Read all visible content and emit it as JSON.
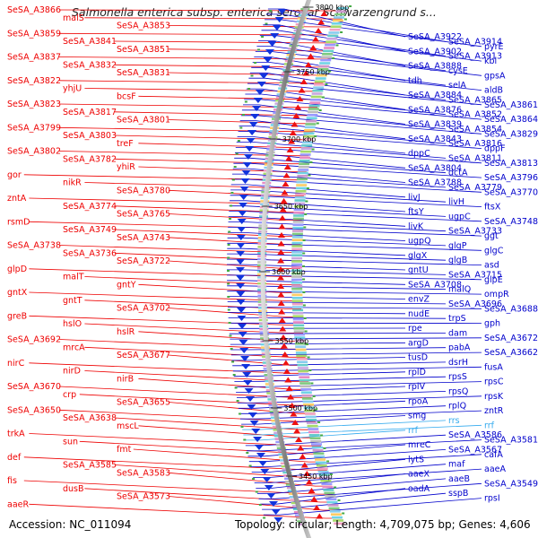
{
  "title": "Salmonella enterica subsp. enterica serovar Schwarzengrund s...",
  "footer": {
    "accession": "Accession: NC_011094",
    "topology": "Topology: circular; Length: 4,709,075 bp; Genes: 4,606"
  },
  "colors": {
    "forward_label": "#ee0000",
    "reverse_label": "#0000cc",
    "rna_label": "#33aaee",
    "backbone": "#888888",
    "tick": "#44aa44"
  },
  "kbp_ticks": [
    "3800 kbp",
    "3750 kbp",
    "3700 kbp",
    "3650 kbp",
    "3600 kbp",
    "3550 kbp",
    "3500 kbp",
    "3450 kbp"
  ],
  "left_labels": [
    "SeSA_A3866",
    "malS",
    "SeSA_A3853",
    "SeSA_A3859",
    "SeSA_A3841",
    "SeSA_A3851",
    "SeSA_A3837",
    "SeSA_A3832",
    "SeSA_A3831",
    "SeSA_A3822",
    "yhjU",
    "bcsF",
    "SeSA_A3823",
    "SeSA_A3817",
    "SeSA_A3801",
    "SeSA_A3799",
    "SeSA_A3803",
    "treF",
    "SeSA_A3802",
    "SeSA_A3782",
    "yhiR",
    "gor",
    "nikR",
    "SeSA_A3780",
    "zntA",
    "SeSA_A3774",
    "SeSA_A3765",
    "rsmD",
    "SeSA_A3749",
    "SeSA_A3743",
    "SeSA_A3738",
    "SeSA_A3736",
    "SeSA_A3722",
    "glpD",
    "malT",
    "gntY",
    "gntX",
    "gntT",
    "SeSA_A3702",
    "greB",
    "hslO",
    "hslR",
    "SeSA_A3692",
    "mrcA",
    "SeSA_A3677",
    "nirC",
    "nirD",
    "nirB",
    "SeSA_A3670",
    "crp",
    "SeSA_A3655",
    "SeSA_A3650",
    "SeSA_A3638",
    "mscL",
    "trkA",
    "sun",
    "fmt",
    "def",
    "SeSA_A3585",
    "SeSA_A3583",
    "fis",
    "dusB",
    "SeSA_A3573",
    "aaeR"
  ],
  "right_labels": [
    "SeSA_A3922",
    "SeSA_A3914",
    "pyrE",
    "SeSA_A3902",
    "SeSA_A3913",
    "kbl",
    "SeSA_A3888",
    "cysE",
    "gpsA",
    "tdh",
    "selA",
    "aldB",
    "SeSA_A3884",
    "SeSA_A3865",
    "SeSA_A3861",
    "SeSA_A3876",
    "SeSA_A3852",
    "SeSA_A3864",
    "SeSA_A3839",
    "SeSA_A3854",
    "SeSA_A3829",
    "SeSA_A3843",
    "SeSA_A3816",
    "dppF",
    "dppC",
    "SeSA_A3811",
    "SeSA_A3813",
    "SeSA_A3804",
    "dctA",
    "SeSA_A3796",
    "SeSA_A3788",
    "SeSA_A3779",
    "SeSA_A3770",
    "livJ",
    "livH",
    "ftsX",
    "ftsY",
    "ugpC",
    "SeSA_A3748",
    "livK",
    "SeSA_A3733",
    "ggt",
    "ugpQ",
    "glgP",
    "glgC",
    "glgX",
    "glgB",
    "asd",
    "gntU",
    "SeSA_A3715",
    "glpE",
    "SeSA_A3708",
    "malQ",
    "ompR",
    "envZ",
    "SeSA_A3696",
    "SeSA_A3688",
    "nudE",
    "trpS",
    "gph",
    "rpe",
    "dam",
    "SeSA_A3672",
    "argD",
    "pabA",
    "SeSA_A3662",
    "tusD",
    "dsrH",
    "fusA",
    "rplD",
    "rpsS",
    "rpsC",
    "rplV",
    "rpsQ",
    "rpsK",
    "rpoA",
    "rplQ",
    "zntR",
    "smg",
    "rrs",
    "rrf",
    "rrf",
    "SeSA_A3586",
    "SeSA_A3581",
    "mreC",
    "SeSA_A3567",
    "cafA",
    "lytS",
    "maf",
    "aaeA",
    "aaeX",
    "aaeB",
    "SeSA_A3549",
    "oadA",
    "sspB",
    "rpsI"
  ]
}
